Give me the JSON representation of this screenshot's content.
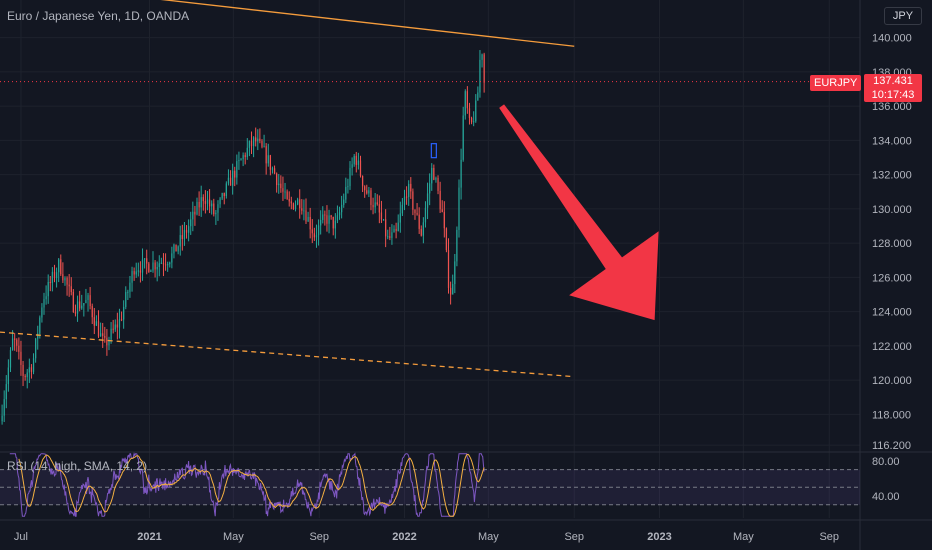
{
  "header": {
    "title": "Euro / Japanese Yen, 1D, OANDA",
    "currency_button": "JPY"
  },
  "price_tag": {
    "symbol": "EURJPY",
    "price": "137.431",
    "countdown": "10:17:43",
    "value": 137.431
  },
  "rsi_panel": {
    "label": "RSI (14, high, SMA, 14, 2)",
    "ticks": [
      "80.00",
      "40.00"
    ]
  },
  "colors": {
    "background": "#131722",
    "grid": "#1e222d",
    "up_candle": "#26a69a",
    "down_candle": "#ef5350",
    "trendline": "#f59c3c",
    "arrow": "#f23645",
    "rsi_line": "#7e57c2",
    "rsi_sma": "#f5b041",
    "price_tag": "#f23645"
  },
  "chart_data": {
    "type": "candlestick",
    "series_name": "EURJPY",
    "y_axis": {
      "ticks": [
        "140.000",
        "138.000",
        "136.000",
        "134.000",
        "132.000",
        "130.000",
        "128.000",
        "126.000",
        "124.000",
        "122.000",
        "120.000",
        "118.000",
        "116.200"
      ],
      "tick_values": [
        140,
        138,
        136,
        134,
        132,
        130,
        128,
        126,
        124,
        122,
        120,
        118,
        116.2
      ],
      "ylim": [
        115.8,
        142.2
      ]
    },
    "x_axis": {
      "ticks": [
        "Jul",
        "2021",
        "May",
        "Sep",
        "2022",
        "May",
        "Sep",
        "2023",
        "May",
        "Sep"
      ],
      "tick_dates": [
        "2020-07-01",
        "2021-01-01",
        "2021-05-01",
        "2021-09-01",
        "2022-01-01",
        "2022-05-01",
        "2022-09-01",
        "2023-01-01",
        "2023-05-01",
        "2023-09-01"
      ],
      "xlim": [
        "2020-06-01",
        "2023-10-15"
      ]
    },
    "price_path": [
      [
        "2020-06-01",
        117.6
      ],
      [
        "2020-06-20",
        122.5
      ],
      [
        "2020-07-05",
        120.2
      ],
      [
        "2020-07-18",
        121.0
      ],
      [
        "2020-08-01",
        124.7
      ],
      [
        "2020-08-25",
        126.8
      ],
      [
        "2020-09-15",
        124.3
      ],
      [
        "2020-10-05",
        124.6
      ],
      [
        "2020-10-28",
        122.0
      ],
      [
        "2020-11-20",
        123.5
      ],
      [
        "2020-12-10",
        126.6
      ],
      [
        "2021-01-10",
        126.8
      ],
      [
        "2021-02-01",
        127.2
      ],
      [
        "2021-02-20",
        128.5
      ],
      [
        "2021-03-20",
        130.8
      ],
      [
        "2021-04-05",
        129.6
      ],
      [
        "2021-04-28",
        131.8
      ],
      [
        "2021-05-20",
        133.4
      ],
      [
        "2021-06-01",
        134.0
      ],
      [
        "2021-06-15",
        133.2
      ],
      [
        "2021-06-30",
        132.0
      ],
      [
        "2021-07-18",
        130.2
      ],
      [
        "2021-08-05",
        130.5
      ],
      [
        "2021-08-25",
        128.5
      ],
      [
        "2021-09-10",
        129.5
      ],
      [
        "2021-09-25",
        129.0
      ],
      [
        "2021-10-15",
        132.0
      ],
      [
        "2021-10-22",
        133.2
      ],
      [
        "2021-11-05",
        131.2
      ],
      [
        "2021-11-25",
        129.8
      ],
      [
        "2021-12-08",
        128.2
      ],
      [
        "2021-12-20",
        128.5
      ],
      [
        "2022-01-05",
        131.3
      ],
      [
        "2022-01-25",
        128.6
      ],
      [
        "2022-02-10",
        132.5
      ],
      [
        "2022-02-25",
        129.5
      ],
      [
        "2022-03-05",
        125.8
      ],
      [
        "2022-03-10",
        124.8
      ],
      [
        "2022-03-20",
        131.0
      ],
      [
        "2022-03-28",
        136.8
      ],
      [
        "2022-04-05",
        134.6
      ],
      [
        "2022-04-15",
        136.2
      ],
      [
        "2022-04-21",
        139.9
      ],
      [
        "2022-04-25",
        137.431
      ]
    ],
    "trendlines": [
      {
        "style": "solid",
        "points": [
          [
            "2020-06-01",
            143.3
          ],
          [
            "2022-09-01",
            139.5
          ]
        ]
      },
      {
        "style": "dashed",
        "points": [
          [
            "2020-06-01",
            122.8
          ],
          [
            "2022-09-01",
            120.2
          ]
        ]
      }
    ],
    "current_price_line": 137.431,
    "annotations": [
      {
        "type": "arrow",
        "direction": "down-right",
        "from": [
          "2022-05-20",
          136.0
        ],
        "to": [
          "2022-12-25",
          123.5
        ]
      },
      {
        "type": "marker",
        "date": "2022-02-12",
        "value": 133.4
      }
    ],
    "rsi": {
      "levels": [
        70,
        50,
        30
      ],
      "tick_values": [
        80,
        40
      ],
      "ylim": [
        15,
        90
      ]
    },
    "grid": true,
    "legend": "none"
  }
}
